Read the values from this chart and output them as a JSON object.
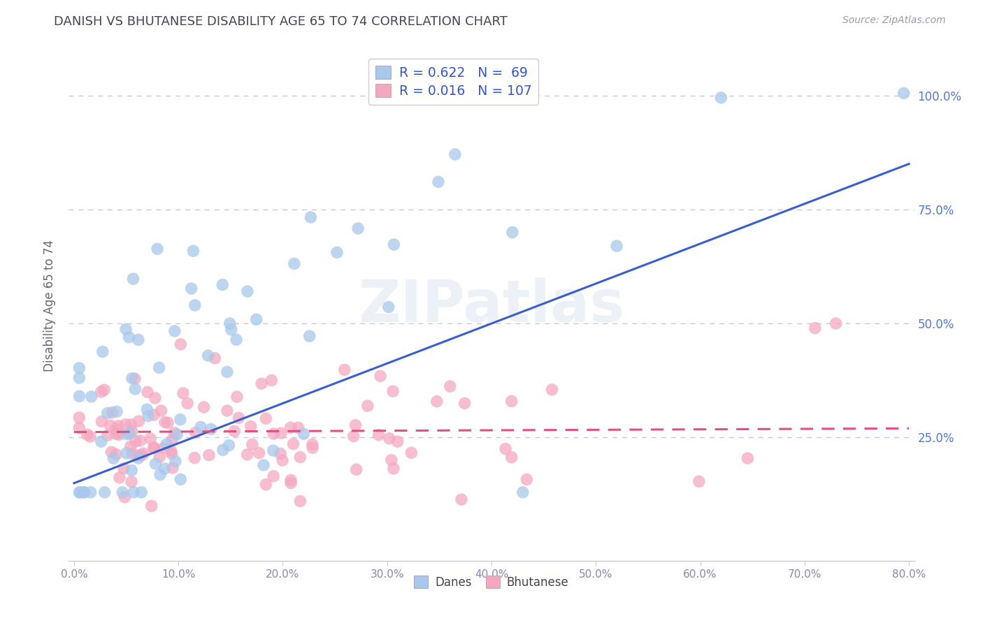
{
  "title": "DANISH VS BHUTANESE DISABILITY AGE 65 TO 74 CORRELATION CHART",
  "source": "Source: ZipAtlas.com",
  "ylabel": "Disability Age 65 to 74",
  "ytick_labels": [
    "25.0%",
    "50.0%",
    "75.0%",
    "100.0%"
  ],
  "legend_labels": [
    "Danes",
    "Bhutanese"
  ],
  "dane_R": 0.622,
  "dane_N": 69,
  "bhut_R": 0.016,
  "bhut_N": 107,
  "dane_color": "#A8C8EC",
  "bhut_color": "#F4A8C0",
  "dane_line_color": "#3A5FCD",
  "bhut_line_color": "#E05080",
  "background_color": "#FFFFFF",
  "watermark": "ZIPatlas",
  "grid_color": "#C8C8DC",
  "xlim": [
    -0.005,
    0.805
  ],
  "ylim": [
    -0.02,
    1.1
  ],
  "ytick_vals": [
    0.25,
    0.5,
    0.75,
    1.0
  ],
  "xtick_vals": [
    0.0,
    0.1,
    0.2,
    0.3,
    0.4,
    0.5,
    0.6,
    0.7,
    0.8
  ]
}
